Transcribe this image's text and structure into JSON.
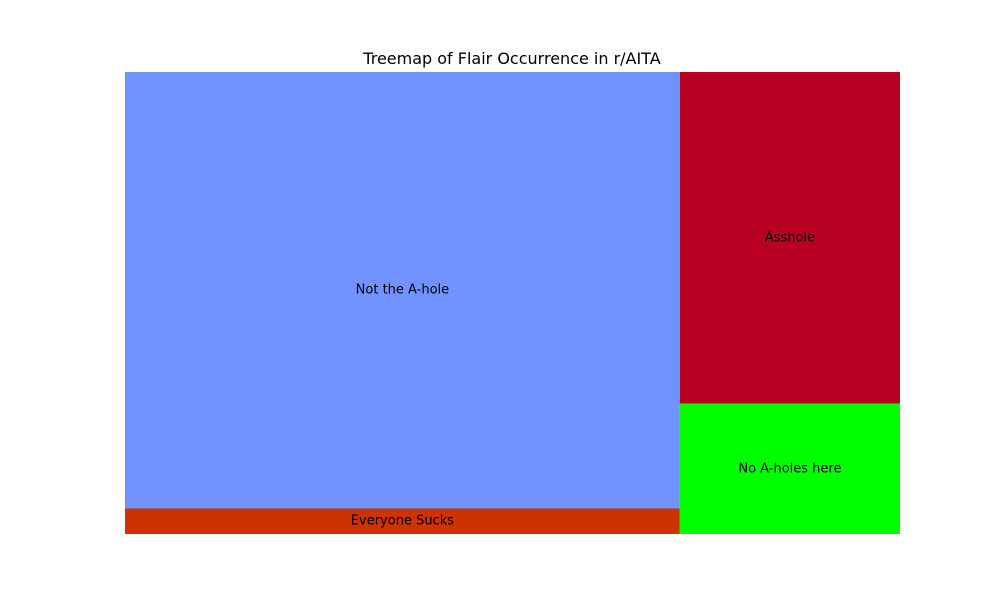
{
  "chart_data": {
    "type": "treemap",
    "title": "Treemap of Flair Occurrence in r/AITA",
    "xlabel": "",
    "ylabel": "",
    "grid": false,
    "axes_visible": false,
    "items": [
      {
        "label": "Not the A-hole",
        "value": 65.0,
        "color": "#7093FF"
      },
      {
        "label": "Everyone Sucks",
        "value": 3.8,
        "color": "#CC3300"
      },
      {
        "label": "Asshole",
        "value": 19.6,
        "color": "#B80022"
      },
      {
        "label": "No A-holes here",
        "value": 7.7,
        "color": "#00FF00"
      }
    ]
  }
}
